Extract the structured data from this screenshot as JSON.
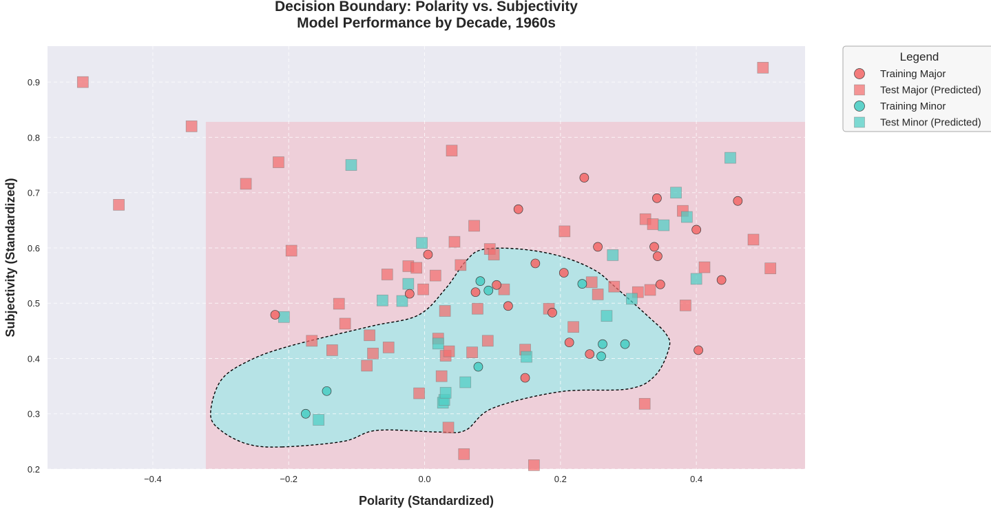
{
  "chart_data": {
    "type": "scatter",
    "title": "Decision Boundary: Polarity vs. Subjectivity",
    "subtitle": "Model Performance by Decade, 1960s",
    "xlabel": "Polarity (Standardized)",
    "ylabel": "Subjectivity (Standardized)",
    "xlim": [
      -0.555,
      0.56
    ],
    "ylim": [
      0.2,
      0.965
    ],
    "x_ticks": [
      "−0.4",
      "−0.2",
      "0.0",
      "0.2",
      "0.4"
    ],
    "x_tick_values": [
      -0.4,
      -0.2,
      0.0,
      0.2,
      0.4
    ],
    "y_ticks": [
      "0.2",
      "0.3",
      "0.4",
      "0.5",
      "0.6",
      "0.7",
      "0.8",
      "0.9"
    ],
    "y_tick_values": [
      0.2,
      0.3,
      0.4,
      0.5,
      0.6,
      0.7,
      0.8,
      0.9
    ],
    "grid": true,
    "legend_title": "Legend",
    "legend_position": "outside-top-right",
    "regions": [
      {
        "class": "Major",
        "color": "#f4a4b0",
        "shape": "rectangle",
        "x_range": [
          -0.322,
          0.56
        ],
        "y_range": [
          0.2,
          0.828
        ]
      },
      {
        "class": "Minor",
        "color": "#b6e3e6",
        "shape": "closed-contour",
        "boundary": "dashed",
        "points": [
          [
            -0.21,
            0.24
          ],
          [
            -0.12,
            0.25
          ],
          [
            -0.07,
            0.27
          ],
          [
            0.02,
            0.267
          ],
          [
            0.06,
            0.27
          ],
          [
            0.1,
            0.31
          ],
          [
            0.2,
            0.34
          ],
          [
            0.3,
            0.345
          ],
          [
            0.34,
            0.37
          ],
          [
            0.36,
            0.42
          ],
          [
            0.355,
            0.445
          ],
          [
            0.33,
            0.475
          ],
          [
            0.28,
            0.53
          ],
          [
            0.25,
            0.56
          ],
          [
            0.2,
            0.585
          ],
          [
            0.14,
            0.598
          ],
          [
            0.085,
            0.597
          ],
          [
            0.06,
            0.575
          ],
          [
            0.03,
            0.525
          ],
          [
            -0.01,
            0.478
          ],
          [
            -0.08,
            0.458
          ],
          [
            -0.2,
            0.422
          ],
          [
            -0.26,
            0.395
          ],
          [
            -0.3,
            0.36
          ],
          [
            -0.315,
            0.3
          ],
          [
            -0.3,
            0.27
          ],
          [
            -0.26,
            0.245
          ]
        ]
      }
    ],
    "series": [
      {
        "name": "Training Major",
        "marker": "circle",
        "color": "#f26d6d",
        "points": [
          [
            -0.22,
            0.479
          ],
          [
            0.005,
            0.588
          ],
          [
            -0.022,
            0.517
          ],
          [
            0.075,
            0.52
          ],
          [
            0.106,
            0.533
          ],
          [
            0.123,
            0.495
          ],
          [
            0.138,
            0.67
          ],
          [
            0.148,
            0.365
          ],
          [
            0.163,
            0.572
          ],
          [
            0.188,
            0.483
          ],
          [
            0.205,
            0.555
          ],
          [
            0.213,
            0.429
          ],
          [
            0.235,
            0.727
          ],
          [
            0.243,
            0.408
          ],
          [
            0.255,
            0.602
          ],
          [
            0.338,
            0.602
          ],
          [
            0.342,
            0.69
          ],
          [
            0.343,
            0.585
          ],
          [
            0.347,
            0.534
          ],
          [
            0.4,
            0.633
          ],
          [
            0.403,
            0.415
          ],
          [
            0.437,
            0.542
          ],
          [
            0.461,
            0.685
          ]
        ]
      },
      {
        "name": "Test Major (Predicted)",
        "marker": "square",
        "color": "#f26d6d",
        "points": [
          [
            -0.503,
            0.9
          ],
          [
            -0.45,
            0.678
          ],
          [
            -0.343,
            0.82
          ],
          [
            -0.263,
            0.716
          ],
          [
            -0.215,
            0.755
          ],
          [
            -0.196,
            0.595
          ],
          [
            -0.166,
            0.432
          ],
          [
            -0.136,
            0.415
          ],
          [
            -0.126,
            0.499
          ],
          [
            -0.117,
            0.463
          ],
          [
            -0.085,
            0.387
          ],
          [
            -0.081,
            0.442
          ],
          [
            -0.076,
            0.409
          ],
          [
            -0.055,
            0.552
          ],
          [
            -0.053,
            0.42
          ],
          [
            -0.024,
            0.567
          ],
          [
            -0.012,
            0.564
          ],
          [
            -0.008,
            0.337
          ],
          [
            -0.002,
            0.525
          ],
          [
            0.016,
            0.55
          ],
          [
            0.02,
            0.436
          ],
          [
            0.025,
            0.368
          ],
          [
            0.03,
            0.486
          ],
          [
            0.031,
            0.405
          ],
          [
            0.035,
            0.275
          ],
          [
            0.036,
            0.413
          ],
          [
            0.04,
            0.776
          ],
          [
            0.044,
            0.611
          ],
          [
            0.053,
            0.569
          ],
          [
            0.058,
            0.227
          ],
          [
            0.07,
            0.411
          ],
          [
            0.073,
            0.64
          ],
          [
            0.078,
            0.49
          ],
          [
            0.093,
            0.432
          ],
          [
            0.096,
            0.598
          ],
          [
            0.102,
            0.588
          ],
          [
            0.117,
            0.525
          ],
          [
            0.148,
            0.416
          ],
          [
            0.161,
            0.207
          ],
          [
            0.183,
            0.49
          ],
          [
            0.206,
            0.63
          ],
          [
            0.219,
            0.457
          ],
          [
            0.246,
            0.538
          ],
          [
            0.255,
            0.516
          ],
          [
            0.279,
            0.53
          ],
          [
            0.314,
            0.52
          ],
          [
            0.324,
            0.318
          ],
          [
            0.325,
            0.652
          ],
          [
            0.332,
            0.524
          ],
          [
            0.336,
            0.643
          ],
          [
            0.38,
            0.667
          ],
          [
            0.384,
            0.496
          ],
          [
            0.412,
            0.565
          ],
          [
            0.484,
            0.615
          ],
          [
            0.498,
            0.926
          ],
          [
            0.509,
            0.563
          ]
        ]
      },
      {
        "name": "Training Minor",
        "marker": "circle",
        "color": "#4ecdc4",
        "points": [
          [
            -0.175,
            0.3
          ],
          [
            -0.144,
            0.341
          ],
          [
            0.079,
            0.385
          ],
          [
            0.082,
            0.54
          ],
          [
            0.094,
            0.523
          ],
          [
            0.232,
            0.535
          ],
          [
            0.26,
            0.404
          ],
          [
            0.262,
            0.426
          ],
          [
            0.295,
            0.426
          ]
        ]
      },
      {
        "name": "Test Minor (Predicted)",
        "marker": "square",
        "color": "#4ecdc4",
        "points": [
          [
            -0.207,
            0.475
          ],
          [
            -0.156,
            0.289
          ],
          [
            -0.108,
            0.75
          ],
          [
            -0.062,
            0.505
          ],
          [
            -0.033,
            0.504
          ],
          [
            -0.024,
            0.535
          ],
          [
            -0.004,
            0.609
          ],
          [
            0.02,
            0.427
          ],
          [
            0.027,
            0.32
          ],
          [
            0.029,
            0.325
          ],
          [
            0.031,
            0.338
          ],
          [
            0.06,
            0.357
          ],
          [
            0.15,
            0.403
          ],
          [
            0.268,
            0.477
          ],
          [
            0.277,
            0.587
          ],
          [
            0.305,
            0.508
          ],
          [
            0.37,
            0.7
          ],
          [
            0.352,
            0.641
          ],
          [
            0.386,
            0.656
          ],
          [
            0.4,
            0.544
          ],
          [
            0.45,
            0.763
          ]
        ]
      }
    ]
  }
}
